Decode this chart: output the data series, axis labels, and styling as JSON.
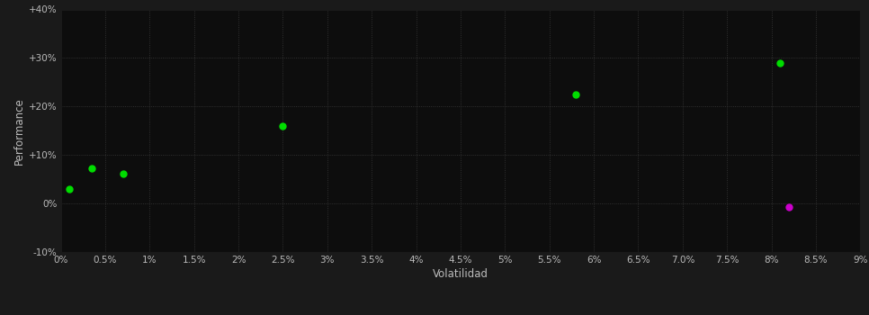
{
  "background_color": "#1a1a1a",
  "plot_bg_color": "#0d0d0d",
  "grid_color": "#3a3a3a",
  "xlabel": "Volatilidad",
  "ylabel": "Performance",
  "xlim": [
    0,
    0.09
  ],
  "ylim": [
    -0.1,
    0.4
  ],
  "green_points": [
    [
      0.001,
      0.03
    ],
    [
      0.0035,
      0.072
    ],
    [
      0.007,
      0.062
    ],
    [
      0.025,
      0.16
    ],
    [
      0.058,
      0.225
    ],
    [
      0.081,
      0.29
    ]
  ],
  "magenta_points": [
    [
      0.082,
      -0.008
    ]
  ],
  "green_color": "#00dd00",
  "magenta_color": "#cc00cc",
  "tick_color": "#bbbbbb",
  "label_color": "#bbbbbb",
  "grid_linestyle": ":",
  "grid_linewidth": 0.6,
  "point_size": 25
}
